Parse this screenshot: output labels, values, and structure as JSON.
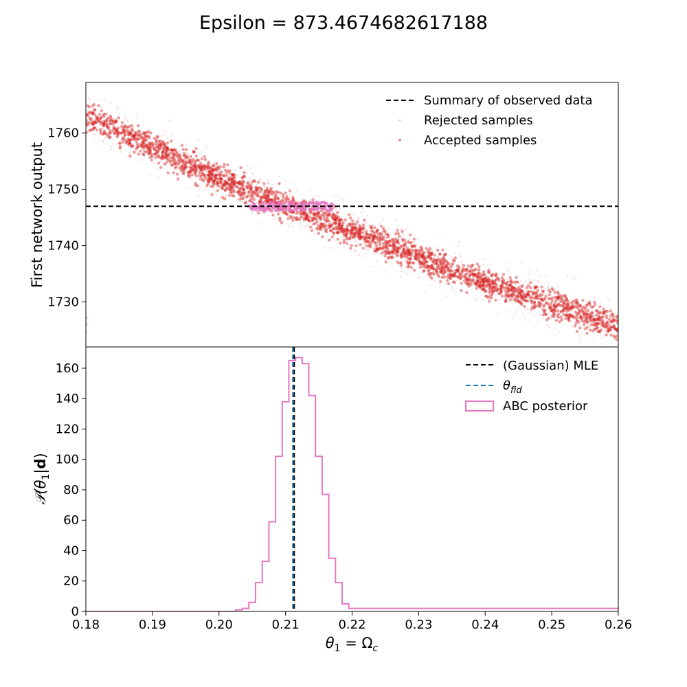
{
  "figure": {
    "title": "Epsilon = 873.4674682617188"
  },
  "chart_data": [
    {
      "type": "scatter",
      "ylabel": "First network output",
      "xlim": [
        0.18,
        0.26
      ],
      "ylim": [
        1722,
        1769
      ],
      "yticks": [
        1730,
        1740,
        1750,
        1760
      ],
      "grid": false,
      "legend_placement": "top-right",
      "legend": [
        "Summary of observed data",
        "Rejected samples",
        "Accepted samples"
      ],
      "observed_summary": 1747.0,
      "rejected_band": {
        "trend": [
          [
            0.18,
            1763.0
          ],
          [
            0.2,
            1752.0
          ],
          [
            0.22,
            1742.5
          ],
          [
            0.24,
            1733.5
          ],
          [
            0.26,
            1725.8
          ]
        ],
        "width": 3.2
      },
      "accepted_range": {
        "x": [
          0.2045,
          0.2175
        ],
        "y": [
          1746.2,
          1747.8
        ]
      },
      "colors": {
        "rejected": "#d62728",
        "accepted": "#e377c2",
        "observed": "#000000"
      }
    },
    {
      "type": "line",
      "subtype": "step-histogram",
      "xlabel": "θ₁ = Ω_c",
      "ylabel": "P(θ₁|d)",
      "xlim": [
        0.18,
        0.26
      ],
      "ylim": [
        0,
        174
      ],
      "xticks": [
        0.18,
        0.19,
        0.2,
        0.21,
        0.22,
        0.23,
        0.24,
        0.25,
        0.26
      ],
      "xtick_labels": [
        "0.18",
        "0.19",
        "0.20",
        "0.21",
        "0.22",
        "0.23",
        "0.24",
        "0.25",
        "0.26"
      ],
      "yticks": [
        0,
        20,
        40,
        60,
        80,
        100,
        120,
        140,
        160
      ],
      "grid": false,
      "legend_placement": "top-right",
      "legend": [
        "(Gaussian) MLE",
        "θ_fid",
        "ABC posterior"
      ],
      "mle": 0.2113,
      "theta_fid": 0.2111,
      "series": [
        {
          "name": "ABC posterior",
          "bin_edges": [
            0.18,
            0.2025,
            0.2035,
            0.2045,
            0.2055,
            0.2065,
            0.2075,
            0.2085,
            0.2095,
            0.2105,
            0.2115,
            0.2125,
            0.2135,
            0.2145,
            0.2155,
            0.2165,
            0.2175,
            0.2185,
            0.2195,
            0.26
          ],
          "values": [
            0,
            1,
            2,
            6,
            19,
            33,
            59,
            102,
            138,
            165,
            167,
            163,
            142,
            102,
            77,
            35,
            19,
            5,
            2,
            1
          ]
        }
      ],
      "colors": {
        "posterior": "#e377c2",
        "mle": "#000000",
        "fid": "#1f77b4"
      }
    }
  ],
  "legend_top": {
    "observed_label": "Summary of observed data",
    "rejected_label": "Rejected samples",
    "accepted_label": "Accepted samples"
  },
  "legend_bottom": {
    "mle_label": "(Gaussian) MLE",
    "fid_label_main": "θ",
    "fid_label_sub": "fid",
    "posterior_label": "ABC posterior"
  },
  "axes_text": {
    "top_ylabel": "First network output",
    "bottom_ylabel_main": "𝒫(θ",
    "bottom_ylabel_sub": "1",
    "bottom_ylabel_rest": "|",
    "bottom_ylabel_bold": "d",
    "bottom_ylabel_close": ")",
    "xlabel_theta": "θ",
    "xlabel_sub1": "1",
    "xlabel_eq": " = Ω",
    "xlabel_subc": "c"
  }
}
